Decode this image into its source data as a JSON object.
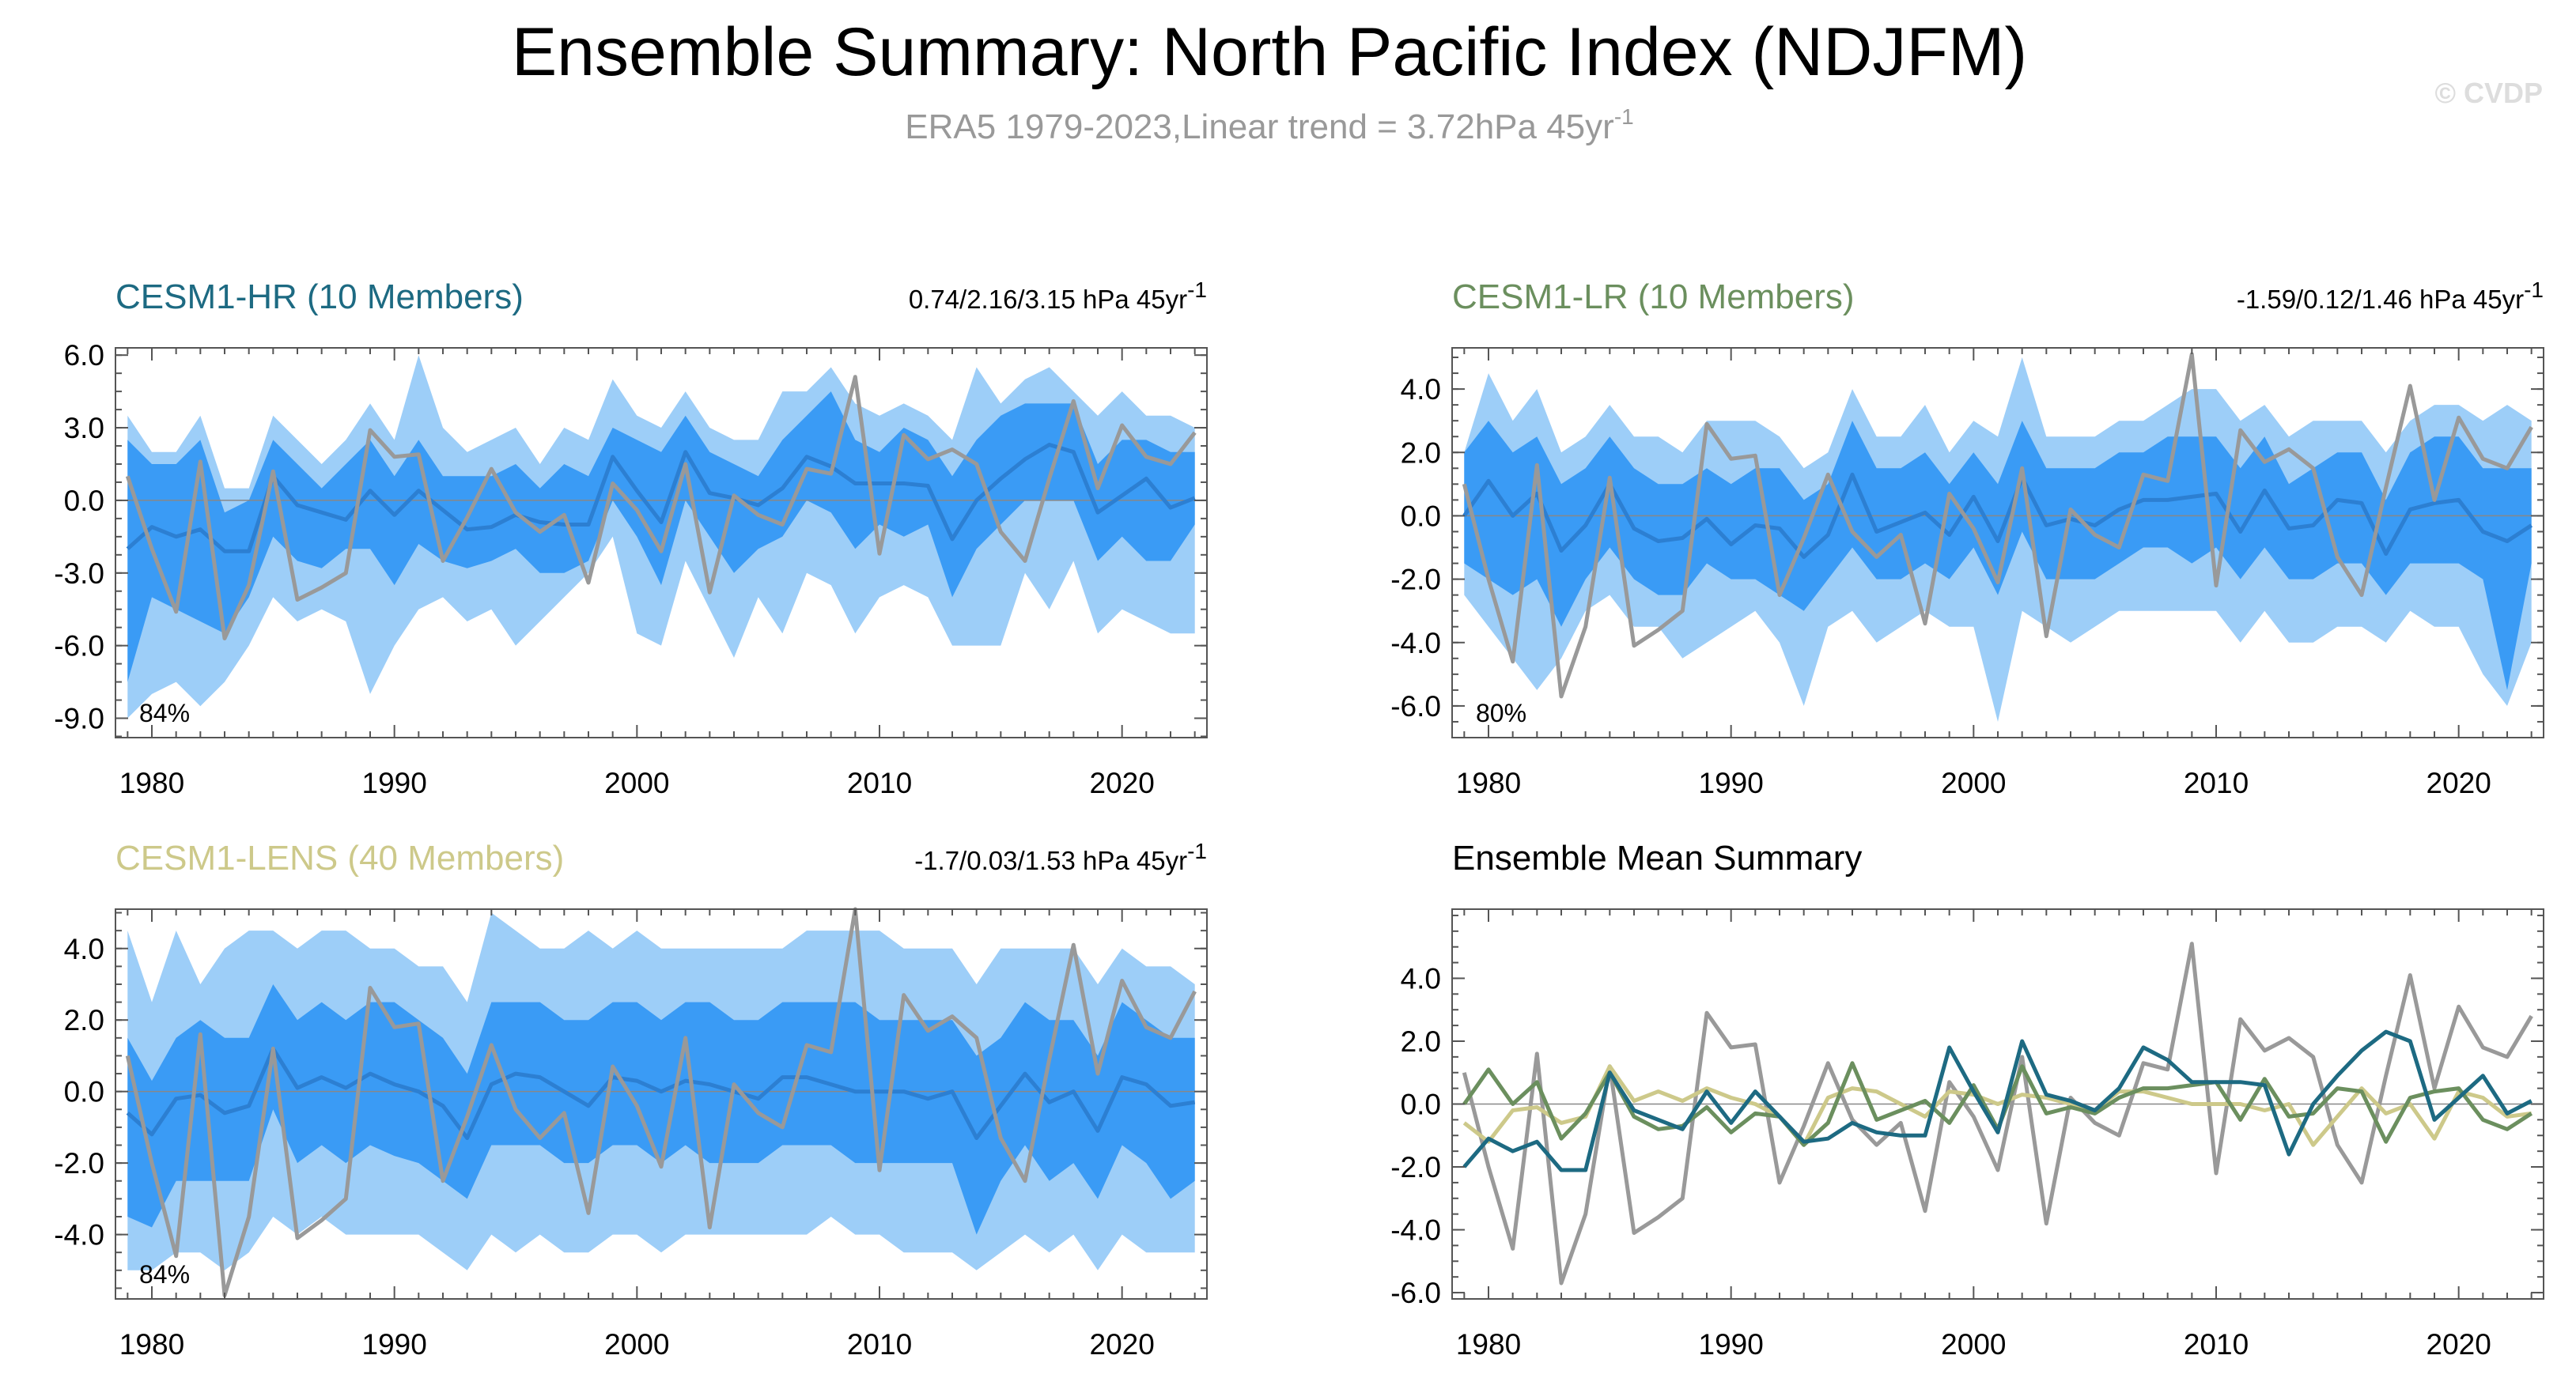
{
  "title": "Ensemble Summary: North Pacific Index (NDJFM)",
  "subtitle": "ERA5 1979-2023,Linear trend = 3.72hPa 45yr",
  "subtitle_sup": "-1",
  "watermark": "© CVDP",
  "colors": {
    "hr": "#1d6a82",
    "lr": "#6b8f5e",
    "lens": "#cdc98a",
    "obs": "#999999",
    "band_outer": "#9dcef8",
    "band_inner": "#3a9bf5",
    "ens_mean_line": "#2c7fd2"
  },
  "chart_data": [
    {
      "type": "area",
      "name": "CESM1-HR",
      "title": "CESM1-HR (10 Members)",
      "trend_label": "0.74/2.16/3.15 hPa 45yr",
      "trend_sup": "-1",
      "percent_label": "84%",
      "ylim": [
        -9.8,
        6.3
      ],
      "yticks": [
        "6.0",
        "3.0",
        "0.0",
        "-3.0",
        "-6.0",
        "-9.0"
      ],
      "ytick_values": [
        6,
        3,
        0,
        -3,
        -6,
        -9
      ],
      "xlim": [
        1978.5,
        2023.5
      ],
      "xticks": [
        "1980",
        "1990",
        "2000",
        "2010",
        "2020"
      ],
      "xtick_values": [
        1980,
        1990,
        2000,
        2010,
        2020
      ],
      "years_start": 1979,
      "ens_mean": [
        -2.0,
        -1.1,
        -1.5,
        -1.2,
        -2.1,
        -2.1,
        1.0,
        -0.2,
        -0.5,
        -0.8,
        0.4,
        -0.6,
        0.4,
        -0.4,
        -1.2,
        -1.1,
        -0.6,
        -0.9,
        -1.0,
        -1.0,
        1.8,
        0.4,
        -0.9,
        2.0,
        0.3,
        0.1,
        -0.2,
        0.5,
        1.8,
        1.4,
        0.7,
        0.7,
        0.7,
        0.6,
        -1.6,
        0.0,
        0.9,
        1.7,
        2.3,
        2.0,
        -0.5,
        0.2,
        0.9,
        -0.3,
        0.1
      ],
      "p25": [
        -7.5,
        -4.0,
        -4.5,
        -5.0,
        -5.5,
        -4.0,
        -1.5,
        -2.5,
        -2.8,
        -2.0,
        -2.0,
        -3.5,
        -1.8,
        -2.5,
        -2.8,
        -2.5,
        -2.0,
        -3.0,
        -3.0,
        -2.5,
        0.0,
        -1.5,
        -3.5,
        0.0,
        -1.5,
        -3.0,
        -2.0,
        -1.5,
        0.0,
        -0.5,
        -2.0,
        -1.0,
        -1.5,
        -1.0,
        -4.0,
        -2.0,
        -1.0,
        0.0,
        0.0,
        0.0,
        -2.5,
        -1.5,
        -2.5,
        -2.5,
        -1.0
      ],
      "p75": [
        2.5,
        1.5,
        1.5,
        2.5,
        -0.5,
        0.0,
        2.5,
        1.5,
        0.5,
        1.5,
        2.5,
        1.0,
        2.5,
        1.0,
        1.0,
        1.0,
        1.5,
        0.5,
        1.5,
        1.0,
        3.0,
        2.5,
        2.0,
        3.5,
        2.0,
        1.5,
        1.0,
        2.5,
        3.5,
        4.5,
        2.5,
        2.0,
        3.0,
        2.5,
        1.0,
        2.5,
        3.5,
        4.0,
        4.0,
        4.0,
        1.5,
        2.5,
        2.5,
        2.0,
        2.0
      ],
      "p5": [
        -9.0,
        -8.0,
        -7.5,
        -8.5,
        -7.5,
        -6.0,
        -4.0,
        -5.0,
        -4.5,
        -5.0,
        -8.0,
        -6.0,
        -4.5,
        -4.0,
        -5.0,
        -4.5,
        -6.0,
        -5.0,
        -4.0,
        -3.0,
        -1.5,
        -5.5,
        -6.0,
        -2.5,
        -4.5,
        -6.5,
        -4.0,
        -5.5,
        -3.0,
        -3.5,
        -5.5,
        -4.0,
        -3.5,
        -4.0,
        -6.0,
        -6.0,
        -6.0,
        -3.0,
        -4.5,
        -2.5,
        -5.5,
        -4.5,
        -5.0,
        -5.5,
        -5.5
      ],
      "p95": [
        3.5,
        2.0,
        2.0,
        3.5,
        0.5,
        0.5,
        3.5,
        2.5,
        1.5,
        2.5,
        4.0,
        2.5,
        6.0,
        3.0,
        2.0,
        2.5,
        3.0,
        1.5,
        3.0,
        2.5,
        5.0,
        3.5,
        3.0,
        4.5,
        3.0,
        2.5,
        2.5,
        4.5,
        4.5,
        5.5,
        4.0,
        3.5,
        4.0,
        3.5,
        2.5,
        5.5,
        4.0,
        5.0,
        5.5,
        4.5,
        3.5,
        4.5,
        3.5,
        3.5,
        3.0
      ],
      "obs": [
        1.0,
        -2.0,
        -4.6,
        1.6,
        -5.7,
        -3.5,
        1.2,
        -4.1,
        -3.6,
        -3.0,
        2.9,
        1.8,
        1.9,
        -2.5,
        -0.7,
        1.3,
        -0.5,
        -1.3,
        -0.6,
        -3.4,
        0.7,
        -0.4,
        -2.1,
        1.5,
        -3.8,
        0.2,
        -0.6,
        -1.0,
        1.3,
        1.1,
        5.1,
        -2.2,
        2.7,
        1.7,
        2.1,
        1.5,
        -1.3,
        -2.5,
        0.9,
        4.1,
        0.5,
        3.1,
        1.8,
        1.5,
        2.8
      ]
    },
    {
      "type": "area",
      "name": "CESM1-LR",
      "title": "CESM1-LR (10 Members)",
      "trend_label": "-1.59/0.12/1.46 hPa 45yr",
      "trend_sup": "-1",
      "percent_label": "80%",
      "ylim": [
        -7.0,
        5.3
      ],
      "yticks": [
        "4.0",
        "2.0",
        "0.0",
        "-2.0",
        "-4.0",
        "-6.0"
      ],
      "ytick_values": [
        4,
        2,
        0,
        -2,
        -4,
        -6
      ],
      "xlim": [
        1978.5,
        2023.5
      ],
      "xticks": [
        "1980",
        "1990",
        "2000",
        "2010",
        "2020"
      ],
      "xtick_values": [
        1980,
        1990,
        2000,
        2010,
        2020
      ],
      "years_start": 1979,
      "ens_mean": [
        0.0,
        1.1,
        0.0,
        0.7,
        -1.1,
        -0.3,
        1.0,
        -0.4,
        -0.8,
        -0.7,
        -0.1,
        -0.9,
        -0.3,
        -0.4,
        -1.3,
        -0.6,
        1.3,
        -0.5,
        -0.2,
        0.1,
        -0.6,
        0.6,
        -0.8,
        1.2,
        -0.3,
        -0.1,
        -0.3,
        0.2,
        0.5,
        0.5,
        0.6,
        0.7,
        -0.5,
        0.8,
        -0.4,
        -0.3,
        0.5,
        0.4,
        -1.2,
        0.2,
        0.4,
        0.5,
        -0.5,
        -0.8,
        -0.3
      ],
      "p25": [
        -1.5,
        -2.0,
        -2.5,
        -2.0,
        -3.5,
        -2.0,
        -1.0,
        -2.0,
        -2.5,
        -2.5,
        -1.5,
        -2.0,
        -2.0,
        -2.5,
        -3.0,
        -2.0,
        -1.0,
        -2.0,
        -2.0,
        -1.5,
        -2.0,
        -1.0,
        -2.5,
        -0.5,
        -2.0,
        -2.0,
        -2.0,
        -1.5,
        -1.0,
        -1.0,
        -1.5,
        -1.0,
        -2.0,
        -1.0,
        -2.0,
        -2.0,
        -1.5,
        -1.5,
        -2.5,
        -1.5,
        -1.5,
        -1.5,
        -2.0,
        -5.5,
        -1.5
      ],
      "p75": [
        2.0,
        3.0,
        2.0,
        2.5,
        1.0,
        1.5,
        2.5,
        1.5,
        1.0,
        1.0,
        1.5,
        1.0,
        1.5,
        1.5,
        0.5,
        1.0,
        3.0,
        1.5,
        1.5,
        2.0,
        1.0,
        2.0,
        1.0,
        3.0,
        1.5,
        1.5,
        1.5,
        2.0,
        2.0,
        2.5,
        2.5,
        2.5,
        1.5,
        2.5,
        1.0,
        1.5,
        2.0,
        2.0,
        0.5,
        2.0,
        2.5,
        2.5,
        1.5,
        1.5,
        1.5
      ],
      "p5": [
        -2.5,
        -3.5,
        -4.5,
        -5.5,
        -4.5,
        -3.0,
        -2.5,
        -3.5,
        -3.5,
        -4.5,
        -4.0,
        -3.5,
        -3.0,
        -4.0,
        -6.0,
        -3.5,
        -3.0,
        -4.0,
        -3.5,
        -3.0,
        -3.5,
        -3.5,
        -6.5,
        -3.0,
        -3.5,
        -4.0,
        -3.5,
        -3.0,
        -3.0,
        -3.0,
        -3.0,
        -3.0,
        -4.0,
        -3.0,
        -4.0,
        -4.0,
        -3.5,
        -3.5,
        -4.0,
        -3.0,
        -3.5,
        -3.5,
        -5.0,
        -6.0,
        -4.0
      ],
      "p95": [
        2.0,
        4.5,
        3.0,
        4.0,
        2.0,
        2.5,
        3.5,
        2.5,
        2.5,
        2.0,
        3.0,
        3.0,
        3.0,
        2.5,
        1.5,
        2.0,
        4.0,
        2.5,
        2.5,
        3.5,
        2.0,
        3.0,
        2.5,
        5.0,
        2.5,
        2.5,
        2.5,
        3.0,
        3.0,
        3.5,
        4.0,
        4.0,
        3.0,
        3.5,
        2.5,
        3.0,
        3.0,
        3.0,
        2.0,
        3.0,
        3.5,
        3.5,
        3.0,
        3.5,
        3.0
      ],
      "obs": [
        1.0,
        -2.0,
        -4.6,
        1.6,
        -5.7,
        -3.5,
        1.2,
        -4.1,
        -3.6,
        -3.0,
        2.9,
        1.8,
        1.9,
        -2.5,
        -0.7,
        1.3,
        -0.5,
        -1.3,
        -0.6,
        -3.4,
        0.7,
        -0.4,
        -2.1,
        1.5,
        -3.8,
        0.2,
        -0.6,
        -1.0,
        1.3,
        1.1,
        5.1,
        -2.2,
        2.7,
        1.7,
        2.1,
        1.5,
        -1.3,
        -2.5,
        0.9,
        4.1,
        0.5,
        3.1,
        1.8,
        1.5,
        2.8
      ]
    },
    {
      "type": "area",
      "name": "CESM1-LENS",
      "title": "CESM1-LENS (40 Members)",
      "trend_label": "-1.7/0.03/1.53 hPa 45yr",
      "trend_sup": "-1",
      "percent_label": "84%",
      "ylim": [
        -5.8,
        5.1
      ],
      "yticks": [
        "4.0",
        "2.0",
        "0.0",
        "-2.0",
        "-4.0"
      ],
      "ytick_values": [
        4,
        2,
        0,
        -2,
        -4
      ],
      "xlim": [
        1978.5,
        2023.5
      ],
      "xticks": [
        "1980",
        "1990",
        "2000",
        "2010",
        "2020"
      ],
      "xtick_values": [
        1980,
        1990,
        2000,
        2010,
        2020
      ],
      "years_start": 1979,
      "ens_mean": [
        -0.6,
        -1.2,
        -0.2,
        -0.1,
        -0.6,
        -0.4,
        1.2,
        0.1,
        0.4,
        0.1,
        0.5,
        0.2,
        0.0,
        -0.4,
        -1.3,
        0.2,
        0.5,
        0.4,
        0.0,
        -0.4,
        0.4,
        0.3,
        0.0,
        0.3,
        0.2,
        0.0,
        -0.2,
        0.4,
        0.4,
        0.2,
        0.0,
        0.0,
        0.0,
        -0.2,
        0.0,
        -1.3,
        -0.4,
        0.5,
        -0.3,
        0.0,
        -1.1,
        0.4,
        0.2,
        -0.4,
        -0.3
      ],
      "p25": [
        -3.5,
        -3.8,
        -2.5,
        -2.5,
        -2.5,
        -2.5,
        -0.5,
        -2.0,
        -1.5,
        -2.0,
        -1.5,
        -1.8,
        -2.0,
        -2.5,
        -3.0,
        -1.5,
        -1.5,
        -1.5,
        -2.0,
        -2.0,
        -1.5,
        -1.5,
        -2.0,
        -1.5,
        -2.0,
        -2.0,
        -2.0,
        -1.5,
        -1.5,
        -1.5,
        -2.0,
        -2.0,
        -2.0,
        -2.0,
        -2.0,
        -4.0,
        -2.5,
        -1.5,
        -2.5,
        -2.0,
        -3.0,
        -1.5,
        -2.0,
        -3.0,
        -2.5
      ],
      "p75": [
        1.5,
        0.3,
        1.5,
        2.0,
        1.5,
        1.5,
        3.0,
        2.0,
        2.5,
        2.0,
        2.5,
        2.5,
        2.0,
        1.5,
        0.5,
        2.5,
        2.5,
        2.5,
        2.0,
        2.0,
        2.5,
        2.5,
        2.0,
        2.5,
        2.5,
        2.0,
        2.0,
        2.5,
        2.5,
        2.5,
        2.5,
        2.0,
        2.0,
        2.0,
        2.0,
        1.0,
        1.5,
        2.5,
        2.0,
        2.0,
        1.0,
        2.5,
        2.0,
        1.5,
        1.5
      ],
      "p5": [
        -5.0,
        -5.0,
        -4.5,
        -4.5,
        -5.0,
        -4.5,
        -3.5,
        -4.0,
        -3.5,
        -4.0,
        -4.0,
        -4.0,
        -4.0,
        -4.5,
        -5.0,
        -4.0,
        -4.5,
        -4.0,
        -4.5,
        -4.5,
        -4.0,
        -4.0,
        -4.5,
        -4.0,
        -4.0,
        -4.0,
        -4.0,
        -4.0,
        -4.0,
        -3.5,
        -4.0,
        -4.0,
        -4.5,
        -4.5,
        -4.5,
        -5.0,
        -4.5,
        -4.0,
        -4.5,
        -4.0,
        -5.0,
        -4.0,
        -4.5,
        -4.5,
        -4.5
      ],
      "p95": [
        4.5,
        2.5,
        4.5,
        3.0,
        4.0,
        4.5,
        4.5,
        4.0,
        4.5,
        4.5,
        4.0,
        4.0,
        3.5,
        3.5,
        2.5,
        5.0,
        4.5,
        4.0,
        4.0,
        4.5,
        4.0,
        4.5,
        4.0,
        4.0,
        4.0,
        4.0,
        4.0,
        4.0,
        4.5,
        4.5,
        4.5,
        4.5,
        4.0,
        4.0,
        4.0,
        3.0,
        4.0,
        4.0,
        4.0,
        4.0,
        3.0,
        4.0,
        3.5,
        3.5,
        3.0
      ],
      "obs": [
        1.0,
        -2.0,
        -4.6,
        1.6,
        -5.7,
        -3.5,
        1.2,
        -4.1,
        -3.6,
        -3.0,
        2.9,
        1.8,
        1.9,
        -2.5,
        -0.7,
        1.3,
        -0.5,
        -1.3,
        -0.6,
        -3.4,
        0.7,
        -0.4,
        -2.1,
        1.5,
        -3.8,
        0.2,
        -0.6,
        -1.0,
        1.3,
        1.1,
        5.1,
        -2.2,
        2.7,
        1.7,
        2.1,
        1.5,
        -1.3,
        -2.5,
        0.9,
        4.1,
        0.5,
        3.1,
        1.8,
        1.5,
        2.8
      ]
    },
    {
      "type": "line",
      "name": "Ensemble Mean Summary",
      "title": "Ensemble Mean Summary",
      "ylim": [
        -6.2,
        6.2
      ],
      "yticks": [
        "4.0",
        "2.0",
        "0.0",
        "-2.0",
        "-4.0",
        "-6.0"
      ],
      "ytick_values": [
        4,
        2,
        0,
        -2,
        -4,
        -6
      ],
      "xlim": [
        1978.5,
        2023.5
      ],
      "xticks": [
        "1980",
        "1990",
        "2000",
        "2010",
        "2020"
      ],
      "xtick_values": [
        1980,
        1990,
        2000,
        2010,
        2020
      ],
      "years_start": 1979,
      "series": [
        {
          "name": "CESM1-HR",
          "color": "#1d6a82",
          "values": [
            -2.0,
            -1.1,
            -1.5,
            -1.2,
            -2.1,
            -2.1,
            1.0,
            -0.2,
            -0.5,
            -0.8,
            0.4,
            -0.6,
            0.4,
            -0.4,
            -1.2,
            -1.1,
            -0.6,
            -0.9,
            -1.0,
            -1.0,
            1.8,
            0.4,
            -0.9,
            2.0,
            0.3,
            0.1,
            -0.2,
            0.5,
            1.8,
            1.4,
            0.7,
            0.7,
            0.7,
            0.6,
            -1.6,
            0.0,
            0.9,
            1.7,
            2.3,
            2.0,
            -0.5,
            0.2,
            0.9,
            -0.3,
            0.1
          ]
        },
        {
          "name": "CESM1-LR",
          "color": "#6b8f5e",
          "values": [
            0.0,
            1.1,
            0.0,
            0.7,
            -1.1,
            -0.3,
            1.0,
            -0.4,
            -0.8,
            -0.7,
            -0.1,
            -0.9,
            -0.3,
            -0.4,
            -1.3,
            -0.6,
            1.3,
            -0.5,
            -0.2,
            0.1,
            -0.6,
            0.6,
            -0.8,
            1.2,
            -0.3,
            -0.1,
            -0.3,
            0.2,
            0.5,
            0.5,
            0.6,
            0.7,
            -0.5,
            0.8,
            -0.4,
            -0.3,
            0.5,
            0.4,
            -1.2,
            0.2,
            0.4,
            0.5,
            -0.5,
            -0.8,
            -0.3
          ]
        },
        {
          "name": "CESM1-LENS",
          "color": "#cdc98a",
          "values": [
            -0.6,
            -1.2,
            -0.2,
            -0.1,
            -0.6,
            -0.4,
            1.2,
            0.1,
            0.4,
            0.1,
            0.5,
            0.2,
            0.0,
            -0.4,
            -1.3,
            0.2,
            0.5,
            0.4,
            0.0,
            -0.4,
            0.4,
            0.3,
            0.0,
            0.3,
            0.2,
            0.0,
            -0.2,
            0.4,
            0.4,
            0.2,
            0.0,
            0.0,
            0.0,
            -0.2,
            0.0,
            -1.3,
            -0.4,
            0.5,
            -0.3,
            0.0,
            -1.1,
            0.4,
            0.2,
            -0.4,
            -0.3
          ]
        },
        {
          "name": "ERA5",
          "color": "#999999",
          "values": [
            1.0,
            -2.0,
            -4.6,
            1.6,
            -5.7,
            -3.5,
            1.2,
            -4.1,
            -3.6,
            -3.0,
            2.9,
            1.8,
            1.9,
            -2.5,
            -0.7,
            1.3,
            -0.5,
            -1.3,
            -0.6,
            -3.4,
            0.7,
            -0.4,
            -2.1,
            1.5,
            -3.8,
            0.2,
            -0.6,
            -1.0,
            1.3,
            1.1,
            5.1,
            -2.2,
            2.7,
            1.7,
            2.1,
            1.5,
            -1.3,
            -2.5,
            0.9,
            4.1,
            0.5,
            3.1,
            1.8,
            1.5,
            2.8
          ]
        }
      ]
    }
  ]
}
